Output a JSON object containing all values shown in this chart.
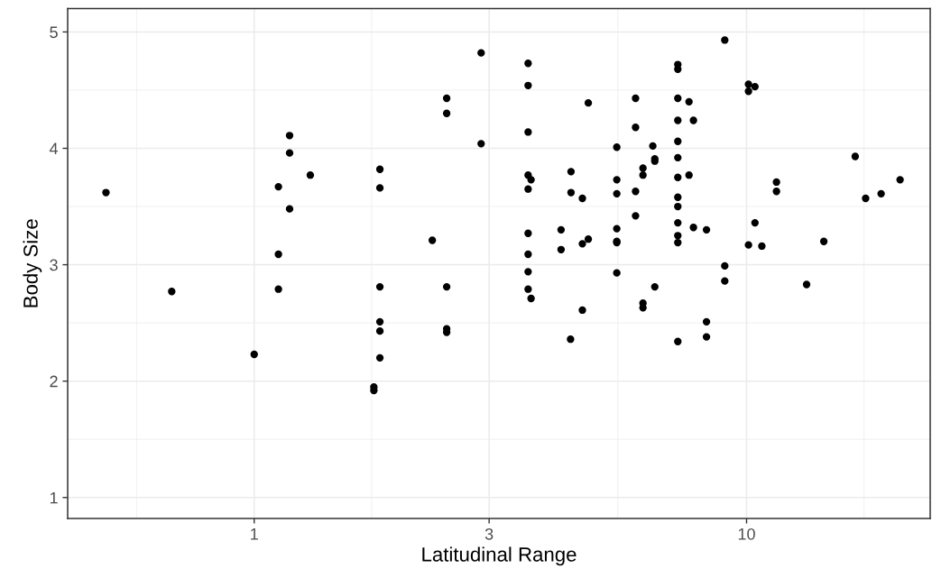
{
  "chart_data": {
    "type": "scatter",
    "xlabel": "Latitudinal Range",
    "ylabel": "Body Size",
    "log": "x",
    "grid": true,
    "marker": "circle",
    "xlim": [
      0.418,
      23.6
    ],
    "ylim": [
      0.82,
      5.2
    ],
    "xticks": [
      1,
      3,
      10
    ],
    "yticks": [
      1,
      2,
      3,
      4,
      5
    ],
    "series": [
      {
        "color": "#000000",
        "x": [
          0.5,
          0.68,
          1.0,
          1.12,
          1.12,
          1.12,
          1.18,
          1.18,
          1.18,
          1.3,
          1.75,
          1.75,
          1.8,
          1.8,
          1.8,
          1.8,
          1.8,
          1.8,
          2.3,
          2.46,
          2.46,
          2.46,
          2.46,
          2.46,
          2.89,
          2.89,
          3.6,
          3.6,
          3.6,
          3.6,
          3.6,
          3.6,
          3.6,
          3.6,
          3.6,
          3.65,
          3.65,
          4.2,
          4.2,
          4.4,
          4.4,
          4.39,
          4.64,
          4.64,
          4.64,
          4.77,
          4.77,
          5.45,
          5.45,
          5.45,
          5.45,
          5.45,
          5.45,
          5.45,
          5.95,
          5.95,
          5.95,
          5.95,
          6.16,
          6.16,
          6.16,
          6.16,
          6.45,
          6.51,
          6.51,
          6.51,
          7.25,
          7.25,
          7.25,
          7.25,
          7.25,
          7.25,
          7.25,
          7.25,
          7.25,
          7.25,
          7.25,
          7.25,
          7.25,
          7.64,
          7.64,
          7.8,
          7.8,
          8.29,
          8.29,
          8.29,
          9.03,
          9.03,
          9.03,
          10.09,
          10.09,
          10.09,
          10.4,
          10.4,
          10.74,
          11.5,
          11.5,
          13.24,
          14.35,
          16.62,
          17.45,
          18.76,
          20.5
        ],
        "values": [
          3.62,
          2.77,
          2.23,
          3.67,
          3.09,
          2.79,
          4.11,
          3.96,
          3.48,
          3.77,
          1.95,
          1.92,
          3.82,
          3.66,
          2.81,
          2.51,
          2.43,
          2.2,
          3.21,
          4.43,
          4.3,
          2.81,
          2.45,
          2.42,
          4.82,
          4.04,
          4.73,
          4.54,
          4.14,
          3.77,
          3.65,
          3.27,
          3.09,
          2.94,
          2.79,
          3.73,
          2.71,
          3.3,
          3.13,
          3.8,
          3.62,
          2.36,
          3.57,
          3.18,
          2.61,
          4.39,
          3.22,
          4.01,
          3.73,
          3.61,
          3.31,
          3.2,
          3.19,
          2.93,
          4.43,
          4.18,
          3.63,
          3.42,
          3.83,
          3.77,
          2.67,
          2.63,
          4.02,
          3.89,
          3.91,
          2.81,
          4.72,
          4.68,
          4.43,
          4.24,
          4.06,
          3.92,
          3.75,
          3.58,
          3.5,
          3.36,
          3.25,
          3.19,
          2.34,
          4.4,
          3.77,
          4.24,
          3.32,
          3.3,
          2.51,
          2.38,
          4.93,
          2.99,
          2.86,
          4.55,
          4.49,
          3.17,
          4.53,
          3.36,
          3.16,
          3.71,
          3.63,
          2.83,
          3.2,
          3.93,
          3.57,
          3.61,
          3.73
        ]
      }
    ]
  }
}
